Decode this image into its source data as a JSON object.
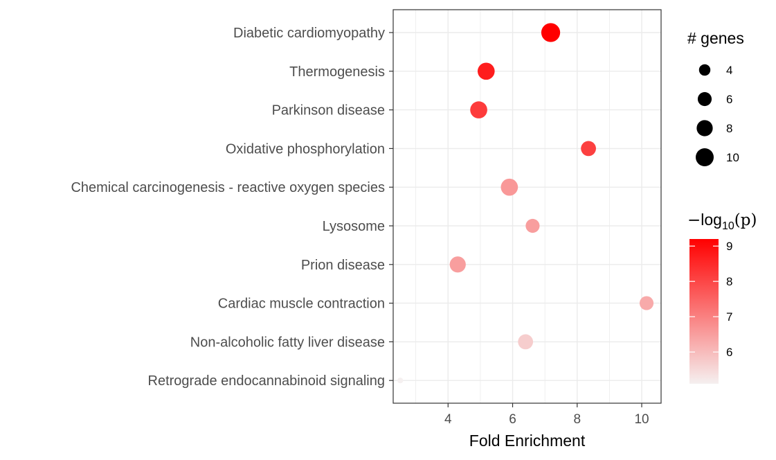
{
  "chart_data": {
    "type": "scatter",
    "xlabel": "Fold Enrichment",
    "ylabel": "",
    "xlim": [
      2.3,
      10.6
    ],
    "x_ticks": [
      4,
      6,
      8,
      10
    ],
    "categories": [
      "Diabetic cardiomyopathy",
      "Thermogenesis",
      "Parkinson disease",
      "Oxidative phosphorylation",
      "Chemical carcinogenesis - reactive oxygen species",
      "Lysosome",
      "Prion disease",
      "Cardiac muscle contraction",
      "Non-alcoholic fatty liver disease",
      "Retrograde endocannabinoid signaling"
    ],
    "points": [
      {
        "category": "Diabetic cardiomyopathy",
        "x": 7.18,
        "genes": 11,
        "neglog10p": 9.2
      },
      {
        "category": "Thermogenesis",
        "x": 5.18,
        "genes": 9,
        "neglog10p": 8.7
      },
      {
        "category": "Parkinson disease",
        "x": 4.95,
        "genes": 9,
        "neglog10p": 8.2
      },
      {
        "category": "Oxidative phosphorylation",
        "x": 8.35,
        "genes": 7,
        "neglog10p": 8.1
      },
      {
        "category": "Chemical carcinogenesis - reactive oxygen species",
        "x": 5.9,
        "genes": 9,
        "neglog10p": 6.6
      },
      {
        "category": "Lysosome",
        "x": 6.62,
        "genes": 6,
        "neglog10p": 6.5
      },
      {
        "category": "Prion disease",
        "x": 4.3,
        "genes": 8,
        "neglog10p": 6.5
      },
      {
        "category": "Cardiac muscle contraction",
        "x": 10.15,
        "genes": 6,
        "neglog10p": 6.3
      },
      {
        "category": "Non-alcoholic fatty liver disease",
        "x": 6.4,
        "genes": 7,
        "neglog10p": 5.7
      },
      {
        "category": "Retrograde endocannabinoid signaling",
        "x": 2.52,
        "genes": 1,
        "neglog10p": 5.1
      }
    ],
    "size_legend": {
      "title": "# genes",
      "values": [
        4,
        6,
        8,
        10
      ],
      "labels": [
        "4",
        "6",
        "8",
        "10"
      ]
    },
    "color_legend": {
      "title_prefix": "−",
      "title_log": "log",
      "title_base": "10",
      "title_arg": "(p)",
      "min": 5.1,
      "max": 9.2,
      "breaks": [
        6,
        7,
        8,
        9
      ],
      "labels": [
        "6",
        "7",
        "8",
        "9"
      ],
      "low_color": "#f5f0f0",
      "high_color": "#ff0000"
    },
    "grid": true,
    "panel_border": true,
    "legend_position": "right"
  }
}
